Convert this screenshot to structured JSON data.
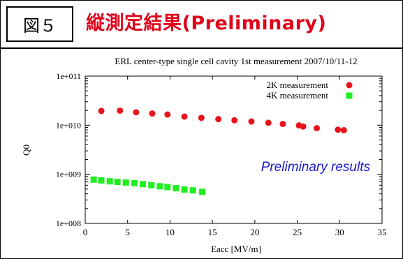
{
  "slide": {
    "figure_label": "図５",
    "title": "縦測定結果(Preliminary)"
  },
  "colors": {
    "title": "#e0001a",
    "series_2k": "#e8141c",
    "series_4k": "#22ee22",
    "annotation": "#1a1ad0"
  },
  "chart_data": {
    "type": "scatter",
    "title": "ERL center-type single cell cavity 1st measurement  2007/10/11-12",
    "xlabel": "Eacc [MV/m]",
    "ylabel": "Q0",
    "xlim": [
      0,
      35
    ],
    "ylim": [
      100000000,
      100000000000
    ],
    "yscale": "log",
    "x_ticks": [
      0,
      5,
      10,
      15,
      20,
      25,
      30,
      35
    ],
    "y_ticks": [
      {
        "value": 100000000,
        "label": "1e+008"
      },
      {
        "value": 1000000000,
        "label": "1e+009"
      },
      {
        "value": 10000000000,
        "label": "1e+010"
      },
      {
        "value": 100000000000,
        "label": "1e+011"
      }
    ],
    "grid": false,
    "legend_position": "top-right",
    "annotation": "Preliminary results",
    "series": [
      {
        "name": "2K measurement",
        "marker": "circle",
        "points": [
          [
            1.9,
            19500000000
          ],
          [
            4.1,
            19800000000
          ],
          [
            6.0,
            18300000000
          ],
          [
            7.9,
            17300000000
          ],
          [
            9.7,
            16500000000
          ],
          [
            11.7,
            15000000000
          ],
          [
            13.7,
            14100000000
          ],
          [
            15.7,
            13300000000
          ],
          [
            17.6,
            12600000000
          ],
          [
            19.6,
            11900000000
          ],
          [
            21.6,
            11200000000
          ],
          [
            23.3,
            10600000000
          ],
          [
            25.2,
            9900000000
          ],
          [
            25.7,
            9400000000
          ],
          [
            27.3,
            8700000000
          ],
          [
            29.8,
            8100000000
          ],
          [
            30.5,
            7900000000
          ]
        ]
      },
      {
        "name": "4K measurement",
        "marker": "square",
        "points": [
          [
            1.0,
            780000000
          ],
          [
            1.9,
            750000000
          ],
          [
            2.9,
            720000000
          ],
          [
            3.8,
            700000000
          ],
          [
            4.8,
            680000000
          ],
          [
            5.8,
            660000000
          ],
          [
            6.8,
            630000000
          ],
          [
            7.8,
            600000000
          ],
          [
            8.8,
            570000000
          ],
          [
            9.7,
            550000000
          ],
          [
            10.7,
            520000000
          ],
          [
            11.7,
            490000000
          ],
          [
            12.7,
            470000000
          ],
          [
            13.8,
            440000000
          ]
        ]
      }
    ]
  }
}
